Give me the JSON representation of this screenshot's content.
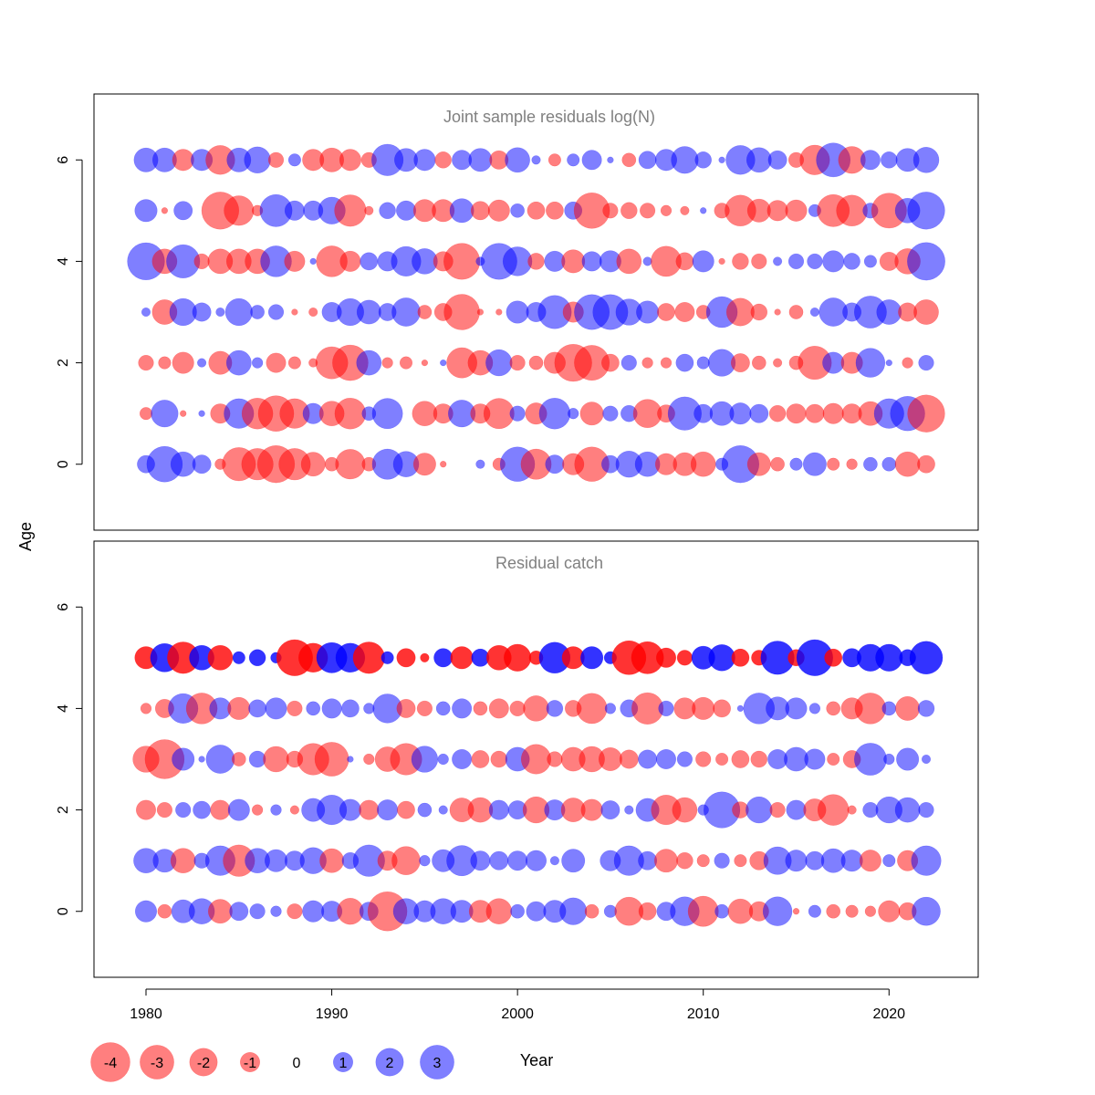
{
  "chart_data": {
    "type": "scatter",
    "xlabel": "Year",
    "ylabel": "Age",
    "xlim": [
      1977.2,
      2024.8
    ],
    "x_ticks": [
      1980,
      1990,
      2000,
      2010,
      2020
    ],
    "y_ticks": [
      0,
      2,
      4,
      6
    ],
    "ylim": [
      -1.3,
      7.3
    ],
    "colors": {
      "negative": "#ff0000",
      "positive": "#0000ff"
    },
    "legend": {
      "position": "bottom-left",
      "entries": [
        {
          "label": "-4",
          "value": -4
        },
        {
          "label": "-3",
          "value": -3
        },
        {
          "label": "-2",
          "value": -2
        },
        {
          "label": "-1",
          "value": -1
        },
        {
          "label": "0",
          "value": 0
        },
        {
          "label": "1",
          "value": 1
        },
        {
          "label": "2",
          "value": 2
        },
        {
          "label": "3",
          "value": 3
        }
      ]
    },
    "years": [
      1980,
      1981,
      1982,
      1983,
      1984,
      1985,
      1986,
      1987,
      1988,
      1989,
      1990,
      1991,
      1992,
      1993,
      1994,
      1995,
      1996,
      1997,
      1998,
      1999,
      2000,
      2001,
      2002,
      2003,
      2004,
      2005,
      2006,
      2007,
      2008,
      2009,
      2010,
      2011,
      2012,
      2013,
      2014,
      2015,
      2016,
      2017,
      2018,
      2019,
      2020,
      2021,
      2022
    ],
    "panels": [
      {
        "title": "Joint sample residuals log(N)",
        "ages": [
          0,
          1,
          2,
          3,
          4,
          5,
          6
        ],
        "alpha": 0.5,
        "residuals": {
          "6": [
            1.5,
            1.5,
            -1.2,
            1.2,
            -2.2,
            1.5,
            1.8,
            -0.6,
            0.4,
            -1.2,
            -1.5,
            -1.2,
            -0.6,
            2.6,
            1.4,
            1.2,
            -0.7,
            1.0,
            1.4,
            -0.9,
            1.6,
            0.2,
            -0.4,
            0.4,
            1.0,
            0.1,
            -0.5,
            0.8,
            1.2,
            1.9,
            0.7,
            0.1,
            2.2,
            1.6,
            0.9,
            -0.6,
            -2.3,
            3.0,
            -1.9,
            1.0,
            0.7,
            1.4,
            1.7
          ],
          "5": [
            1.3,
            -0.1,
            0.9,
            0,
            -3.6,
            -2.3,
            -0.3,
            2.7,
            1.0,
            1.0,
            1.9,
            -2.6,
            -0.2,
            0.7,
            1.0,
            -1.3,
            -1.3,
            1.5,
            -0.9,
            -1.2,
            0.5,
            -0.8,
            -0.8,
            0.8,
            -3.3,
            -0.6,
            -0.7,
            -0.6,
            -0.3,
            -0.2,
            0.1,
            -0.6,
            -2.5,
            -1.4,
            -1.1,
            -1.2,
            0.4,
            -2.7,
            -2.5,
            0.6,
            -3.2,
            1.6,
            3.6
          ],
          "4": [
            3.6,
            -1.6,
            2.9,
            -0.6,
            -1.6,
            -1.6,
            -1.6,
            2.5,
            -1.1,
            0.1,
            -2.5,
            -1.1,
            0.8,
            1.0,
            2.3,
            1.7,
            -1.0,
            -3.4,
            0.2,
            3.4,
            2.2,
            -0.7,
            1.1,
            -1.4,
            1.0,
            1.2,
            -1.6,
            0.2,
            -2.4,
            -0.8,
            1.2,
            -0.1,
            -0.7,
            -0.6,
            0.2,
            0.6,
            0.6,
            1.2,
            0.7,
            0.4,
            -0.9,
            -1.7,
            3.7
          ],
          "3": [
            0.2,
            -1.6,
            1.9,
            0.9,
            0.2,
            1.9,
            0.5,
            0.6,
            -0.1,
            -0.2,
            1.0,
            1.9,
            1.5,
            0.8,
            2.1,
            -0.5,
            -0.8,
            -3.3,
            -0.1,
            -0.1,
            1.3,
            1.0,
            2.9,
            -1.1,
            3.2,
            3.2,
            1.8,
            1.3,
            -0.8,
            -1.0,
            -0.5,
            2.5,
            -2.0,
            -0.7,
            -0.1,
            -0.5,
            0.2,
            2.1,
            0.9,
            2.7,
            1.6,
            -0.9,
            -1.6
          ],
          "2": [
            -0.6,
            -0.4,
            -1.2,
            0.2,
            -1.4,
            1.6,
            0.3,
            -1.0,
            -0.4,
            -0.2,
            -2.7,
            -3.3,
            1.6,
            -0.3,
            -0.4,
            -0.1,
            0.1,
            -2.4,
            -1.6,
            1.8,
            -0.6,
            -0.5,
            -1.2,
            -3.6,
            -3.2,
            -0.8,
            0.6,
            -0.3,
            -0.3,
            0.8,
            0.4,
            1.9,
            -0.9,
            -0.5,
            -0.2,
            -0.5,
            -2.9,
            1.2,
            -1.2,
            2.2,
            0.1,
            -0.3,
            0.6
          ],
          "1": [
            -0.4,
            1.9,
            -0.1,
            0.1,
            -1.0,
            2.3,
            -2.5,
            -3.3,
            -2.3,
            1.1,
            -1.6,
            -2.5,
            0.5,
            2.4,
            0,
            -1.6,
            -1.0,
            1.9,
            -1.0,
            -2.4,
            0.6,
            -1.2,
            2.5,
            0.3,
            -1.4,
            0.6,
            0.7,
            -2.1,
            -0.8,
            2.9,
            0.9,
            1.5,
            1.2,
            0.9,
            -0.7,
            -1.0,
            -0.9,
            -1.1,
            -1.0,
            -1.5,
            2.3,
            3.1,
            -3.6
          ],
          "0": [
            0.8,
            3.3,
            1.6,
            0.9,
            -0.3,
            -2.9,
            -2.6,
            -3.6,
            -2.6,
            -1.5,
            -0.5,
            -2.3,
            -0.5,
            2.4,
            1.7,
            -1.3,
            -0.1,
            0,
            0.2,
            -0.4,
            3.1,
            -2.4,
            0.9,
            -1.2,
            -3.1,
            0.8,
            1.8,
            1.6,
            -1.2,
            -1.4,
            -1.6,
            0.4,
            3.6,
            -1.4,
            -0.5,
            0.4,
            1.4,
            -0.4,
            -0.3,
            0.5,
            0.5,
            -1.6,
            -0.8
          ]
        }
      },
      {
        "title": "Residual catch",
        "ages": [
          0,
          1,
          2,
          3,
          4,
          5
        ],
        "alpha": 0.5,
        "age5_alpha": 0.8,
        "residuals": {
          "5": [
            -1.3,
            2.1,
            -2.6,
            1.6,
            -1.6,
            0.4,
            0.7,
            0.3,
            -3.4,
            -2.2,
            2.4,
            2.2,
            -2.6,
            0.4,
            -0.9,
            -0.2,
            0.9,
            -1.3,
            0.8,
            -1.6,
            -1.9,
            -0.5,
            2.5,
            -1.3,
            1.3,
            0.4,
            -3.0,
            -2.7,
            -1.0,
            -0.6,
            1.4,
            1.8,
            -0.8,
            -0.6,
            2.9,
            -0.7,
            3.4,
            -0.8,
            0.9,
            1.9,
            1.9,
            0.7,
            2.8
          ],
          "4": [
            -0.3,
            -0.9,
            2.3,
            -2.5,
            1.2,
            -1.3,
            0.8,
            1.2,
            -0.6,
            0.5,
            1.0,
            0.8,
            0.3,
            2.2,
            -0.9,
            -0.6,
            0.5,
            1.0,
            -0.5,
            -1.0,
            -0.6,
            -1.7,
            0.7,
            -0.7,
            -2.4,
            0.3,
            0.8,
            -2.6,
            0.6,
            -1.2,
            -1.3,
            -0.8,
            0.1,
            2.5,
            1.4,
            1.2,
            0.3,
            -0.5,
            -1.2,
            -2.5,
            0.5,
            -1.5,
            0.7
          ],
          "3": [
            -1.8,
            -4.0,
            1.3,
            0.1,
            2.1,
            -0.5,
            0.7,
            -1.7,
            -0.7,
            -2.6,
            -3.0,
            0.1,
            -0.3,
            -1.6,
            -2.6,
            1.8,
            0.3,
            1.0,
            -0.8,
            -0.7,
            1.5,
            -2.3,
            -0.6,
            -1.5,
            -1.7,
            -1.4,
            -0.9,
            0.9,
            1.0,
            0.6,
            -0.6,
            -0.4,
            -0.8,
            -0.7,
            1.0,
            1.5,
            1.1,
            -0.4,
            -0.8,
            2.7,
            0.3,
            1.3,
            0.2
          ],
          "2": [
            -1.0,
            -0.6,
            0.6,
            0.8,
            -1.0,
            1.2,
            -0.3,
            0.3,
            -0.2,
            1.4,
            2.3,
            1.2,
            -1.0,
            1.1,
            -0.8,
            0.5,
            0.2,
            -1.5,
            -1.6,
            1.0,
            0.9,
            -1.8,
            1.1,
            -1.5,
            -1.2,
            0.9,
            0.2,
            1.4,
            -2.3,
            -1.6,
            0.3,
            3.4,
            -0.7,
            1.8,
            -0.6,
            1.0,
            -1.3,
            -2.5,
            -0.2,
            0.6,
            1.8,
            1.6,
            0.6
          ],
          "1": [
            1.6,
            1.4,
            -1.6,
            0.6,
            2.3,
            -2.6,
            1.6,
            1.3,
            1.0,
            1.8,
            -1.5,
            0.7,
            2.6,
            -1.0,
            -2.1,
            0.3,
            1.3,
            2.4,
            1.0,
            0.9,
            1.0,
            1.1,
            0.2,
            1.4,
            0,
            1.1,
            2.3,
            0.9,
            -1.4,
            -0.7,
            -0.4,
            0.6,
            -0.4,
            -0.9,
            2.0,
            1.2,
            0.9,
            1.5,
            1.2,
            -1.2,
            0.4,
            -1.1,
            2.3
          ],
          "0": [
            1.2,
            -0.5,
            1.4,
            1.7,
            -1.5,
            0.9,
            0.6,
            0.3,
            -0.6,
            1.2,
            1.1,
            -1.8,
            0.9,
            -4.0,
            1.7,
            1.2,
            1.7,
            1.3,
            -1.3,
            -1.7,
            0.5,
            1.0,
            1.3,
            1.9,
            -0.5,
            0.4,
            -2.1,
            -0.8,
            0.9,
            2.2,
            -2.4,
            0.5,
            -1.6,
            -1.0,
            2.2,
            -0.1,
            0.4,
            -0.5,
            -0.4,
            -0.3,
            -1.2,
            -0.8,
            2.1
          ]
        }
      }
    ]
  }
}
